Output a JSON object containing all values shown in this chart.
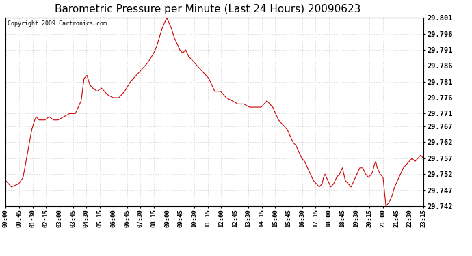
{
  "title": "Barometric Pressure per Minute (Last 24 Hours) 20090623",
  "copyright_text": "Copyright 2009 Cartronics.com",
  "line_color": "#cc0000",
  "background_color": "#ffffff",
  "grid_color": "#cccccc",
  "ylim": [
    29.742,
    29.801
  ],
  "yticks": [
    29.801,
    29.796,
    29.791,
    29.786,
    29.781,
    29.776,
    29.771,
    29.767,
    29.762,
    29.757,
    29.752,
    29.747,
    29.742
  ],
  "xtick_labels": [
    "00:00",
    "00:45",
    "01:30",
    "02:15",
    "03:00",
    "03:45",
    "04:30",
    "05:15",
    "06:00",
    "06:45",
    "07:30",
    "08:15",
    "09:00",
    "09:45",
    "10:30",
    "11:15",
    "12:00",
    "12:45",
    "13:30",
    "14:15",
    "15:00",
    "15:45",
    "16:30",
    "17:15",
    "18:00",
    "18:45",
    "19:30",
    "20:15",
    "21:00",
    "21:45",
    "22:30",
    "23:15"
  ],
  "title_fontsize": 11,
  "copyright_fontsize": 6,
  "ylabel_fontsize": 7.5,
  "xlabel_fontsize": 6.5,
  "ctrl_x": [
    0,
    20,
    45,
    60,
    90,
    100,
    105,
    115,
    120,
    135,
    150,
    165,
    180,
    200,
    220,
    240,
    260,
    270,
    280,
    290,
    300,
    315,
    330,
    350,
    370,
    390,
    410,
    430,
    450,
    470,
    490,
    510,
    520,
    530,
    540,
    550,
    555,
    560,
    565,
    570,
    580,
    590,
    600,
    610,
    620,
    630,
    640,
    650,
    660,
    670,
    680,
    700,
    720,
    740,
    760,
    780,
    800,
    820,
    840,
    860,
    880,
    900,
    920,
    940,
    960,
    970,
    975,
    980,
    985,
    990,
    1000,
    1010,
    1020,
    1030,
    1035,
    1040,
    1050,
    1060,
    1070,
    1080,
    1090,
    1095,
    1100,
    1110,
    1120,
    1130,
    1140,
    1150,
    1155,
    1160,
    1165,
    1170,
    1180,
    1190,
    1200,
    1210,
    1215,
    1220,
    1230,
    1240,
    1250,
    1260,
    1265,
    1270,
    1275,
    1280,
    1290,
    1300,
    1310,
    1320,
    1330,
    1340,
    1350,
    1360,
    1370,
    1380,
    1390,
    1400,
    1410,
    1420,
    1430,
    1439
  ],
  "ctrl_y": [
    29.75,
    29.748,
    29.749,
    29.751,
    29.766,
    29.769,
    29.77,
    29.769,
    29.769,
    29.769,
    29.77,
    29.769,
    29.769,
    29.77,
    29.771,
    29.771,
    29.775,
    29.782,
    29.783,
    29.78,
    29.779,
    29.778,
    29.779,
    29.777,
    29.776,
    29.776,
    29.778,
    29.781,
    29.783,
    29.785,
    29.787,
    29.79,
    29.792,
    29.795,
    29.798,
    29.8,
    29.801,
    29.8,
    29.799,
    29.798,
    29.795,
    29.793,
    29.791,
    29.79,
    29.791,
    29.789,
    29.788,
    29.787,
    29.786,
    29.785,
    29.784,
    29.782,
    29.778,
    29.778,
    29.776,
    29.775,
    29.774,
    29.774,
    29.773,
    29.773,
    29.773,
    29.775,
    29.773,
    29.769,
    29.767,
    29.766,
    29.765,
    29.764,
    29.763,
    29.762,
    29.761,
    29.759,
    29.757,
    29.756,
    29.755,
    29.754,
    29.752,
    29.75,
    29.749,
    29.748,
    29.749,
    29.751,
    29.752,
    29.75,
    29.748,
    29.749,
    29.751,
    29.752,
    29.753,
    29.754,
    29.752,
    29.75,
    29.749,
    29.748,
    29.75,
    29.752,
    29.753,
    29.754,
    29.754,
    29.752,
    29.751,
    29.752,
    29.753,
    29.755,
    29.756,
    29.754,
    29.752,
    29.751,
    29.742,
    29.743,
    29.745,
    29.748,
    29.75,
    29.752,
    29.754,
    29.755,
    29.756,
    29.757,
    29.756,
    29.757,
    29.758,
    29.757
  ]
}
